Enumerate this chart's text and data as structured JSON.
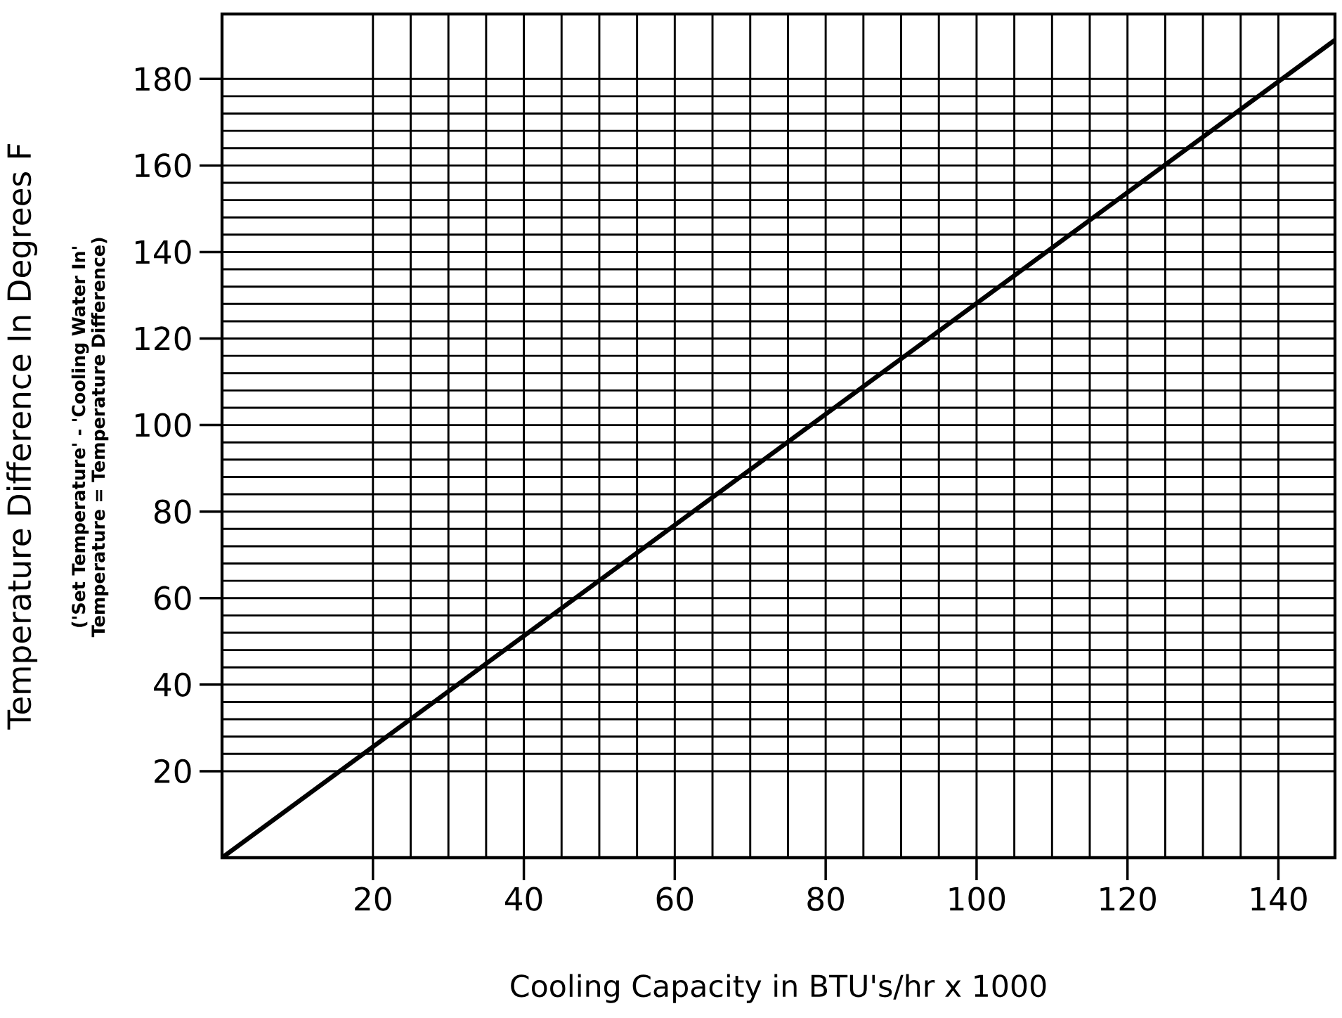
{
  "chart_data": {
    "type": "line",
    "xlabel": "Cooling Capacity in BTU's/hr x 1000",
    "ylabel": "Temperature Difference In Degrees F",
    "annotations": [
      "('Set Temperature' - 'Cooling Water In' Temperature = Temperature Difference)"
    ],
    "x": [
      0,
      147.5
    ],
    "series": [
      {
        "color": "#000000",
        "values": [
          0,
          189
        ]
      }
    ],
    "xlim": [
      0,
      147.5
    ],
    "ylim": [
      0,
      195
    ],
    "xticks": [
      20,
      40,
      60,
      80,
      100,
      120,
      140
    ],
    "yticks": [
      20,
      40,
      60,
      80,
      100,
      120,
      140,
      160,
      180
    ],
    "grid": true,
    "marker": "none",
    "line_style": "solid"
  }
}
